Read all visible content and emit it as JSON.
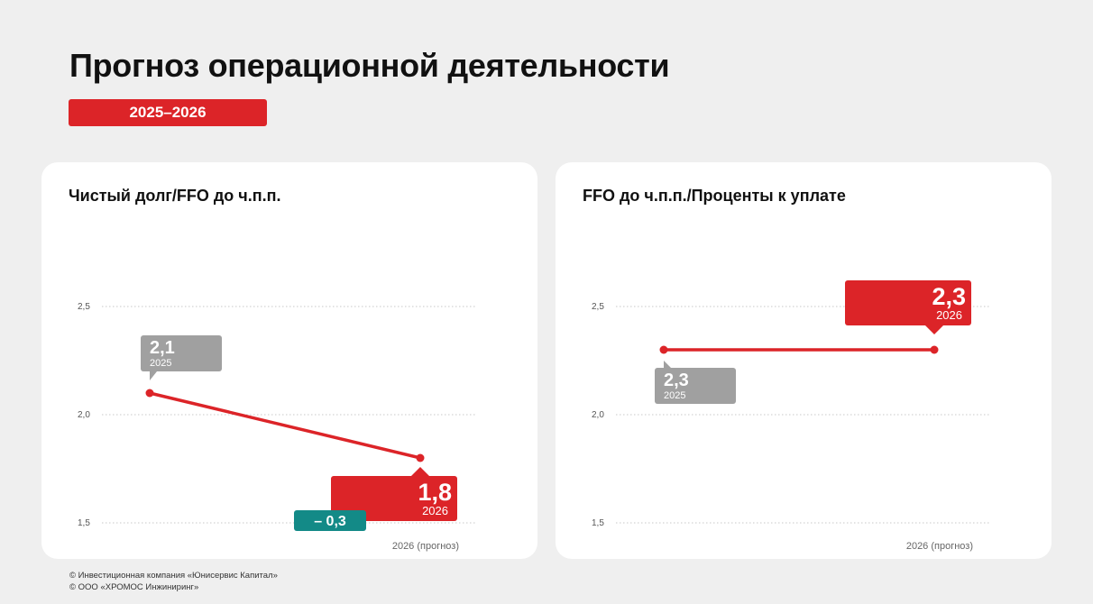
{
  "header": {
    "title": "Прогноз операционной деятельности",
    "period_badge": "2025–2026"
  },
  "colors": {
    "accent": "#dc2428",
    "muted": "#a0a0a0",
    "teal": "#138a87",
    "background": "#efefef",
    "card": "#ffffff"
  },
  "chart_data": [
    {
      "type": "line",
      "title": "Чистый долг/FFO до ч.п.п.",
      "x": [
        "2025",
        "2026"
      ],
      "x_tick_labels": [
        "",
        "2026 (прогноз)"
      ],
      "yticks": [
        1.5,
        2.0,
        2.5
      ],
      "ytick_labels": [
        "1,5",
        "2,0",
        "2,5"
      ],
      "ylim": [
        1.5,
        2.5
      ],
      "grid": true,
      "series": [
        {
          "values": [
            2.1,
            1.8
          ]
        }
      ],
      "callouts": [
        {
          "value_label": "2,1",
          "year_label": "2025",
          "style": "muted",
          "placement": "above"
        },
        {
          "value_label": "1,8",
          "year_label": "2026",
          "style": "accent",
          "placement": "below"
        }
      ],
      "change_badge": "– 0,3"
    },
    {
      "type": "line",
      "title": "FFO до ч.п.п./Проценты к уплате",
      "x": [
        "2025",
        "2026"
      ],
      "x_tick_labels": [
        "",
        "2026 (прогноз)"
      ],
      "yticks": [
        1.5,
        2.0,
        2.5
      ],
      "ytick_labels": [
        "1,5",
        "2,0",
        "2,5"
      ],
      "ylim": [
        1.5,
        2.5
      ],
      "grid": true,
      "series": [
        {
          "values": [
            2.3,
            2.3
          ]
        }
      ],
      "callouts": [
        {
          "value_label": "2,3",
          "year_label": "2025",
          "style": "muted",
          "placement": "below"
        },
        {
          "value_label": "2,3",
          "year_label": "2026",
          "style": "accent",
          "placement": "above"
        }
      ]
    }
  ],
  "footer": {
    "line1": "© Инвестиционная компания «Юнисервис Капитал»",
    "line2": "© ООО «ХРОМОС Инжиниринг»"
  }
}
